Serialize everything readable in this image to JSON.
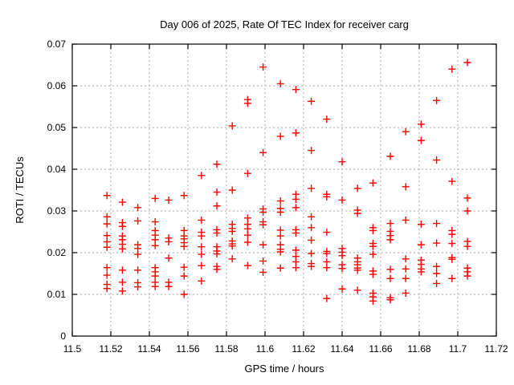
{
  "chart_data": {
    "type": "scatter",
    "title": "Day 006 of 2025, Rate Of TEC Index for receiver carg",
    "xlabel": "GPS time / hours",
    "ylabel": "ROTI / TECUs",
    "xlim": [
      11.5,
      11.72
    ],
    "ylim": [
      0,
      0.07
    ],
    "xticks": [
      {
        "value": 11.5,
        "label": "11.5"
      },
      {
        "value": 11.52,
        "label": "11.52"
      },
      {
        "value": 11.54,
        "label": "11.54"
      },
      {
        "value": 11.56,
        "label": "11.56"
      },
      {
        "value": 11.58,
        "label": "11.58"
      },
      {
        "value": 11.6,
        "label": "11.6"
      },
      {
        "value": 11.62,
        "label": "11.62"
      },
      {
        "value": 11.64,
        "label": "11.64"
      },
      {
        "value": 11.66,
        "label": "11.66"
      },
      {
        "value": 11.68,
        "label": "11.68"
      },
      {
        "value": 11.7,
        "label": "11.7"
      },
      {
        "value": 11.72,
        "label": "11.72"
      }
    ],
    "yticks": [
      {
        "value": 0,
        "label": "0"
      },
      {
        "value": 0.01,
        "label": "0.01"
      },
      {
        "value": 0.02,
        "label": "0.02"
      },
      {
        "value": 0.03,
        "label": "0.03"
      },
      {
        "value": 0.04,
        "label": "0.04"
      },
      {
        "value": 0.05,
        "label": "0.05"
      },
      {
        "value": 0.06,
        "label": "0.06"
      },
      {
        "value": 0.07,
        "label": "0.07"
      }
    ],
    "grid": true,
    "legend_position": "none",
    "marker": {
      "shape": "plus",
      "color": "#ff0000",
      "size": 9
    },
    "series": [
      {
        "name": "ROTI",
        "points": [
          [
            11.518,
            0.0337
          ],
          [
            11.518,
            0.0286
          ],
          [
            11.518,
            0.0269
          ],
          [
            11.518,
            0.0241
          ],
          [
            11.518,
            0.0226
          ],
          [
            11.518,
            0.0213
          ],
          [
            11.518,
            0.0164
          ],
          [
            11.518,
            0.0146
          ],
          [
            11.518,
            0.0124
          ],
          [
            11.518,
            0.0114
          ],
          [
            11.526,
            0.0321
          ],
          [
            11.526,
            0.0272
          ],
          [
            11.526,
            0.0263
          ],
          [
            11.526,
            0.024
          ],
          [
            11.526,
            0.0231
          ],
          [
            11.526,
            0.022
          ],
          [
            11.526,
            0.0209
          ],
          [
            11.526,
            0.0158
          ],
          [
            11.526,
            0.0129
          ],
          [
            11.526,
            0.0108
          ],
          [
            11.534,
            0.0308
          ],
          [
            11.534,
            0.0276
          ],
          [
            11.534,
            0.0219
          ],
          [
            11.534,
            0.021
          ],
          [
            11.534,
            0.0196
          ],
          [
            11.534,
            0.0158
          ],
          [
            11.534,
            0.0128
          ],
          [
            11.534,
            0.0118
          ],
          [
            11.543,
            0.033
          ],
          [
            11.543,
            0.0274
          ],
          [
            11.543,
            0.0253
          ],
          [
            11.543,
            0.0242
          ],
          [
            11.543,
            0.0231
          ],
          [
            11.543,
            0.0217
          ],
          [
            11.543,
            0.0164
          ],
          [
            11.543,
            0.0154
          ],
          [
            11.543,
            0.0144
          ],
          [
            11.543,
            0.0129
          ],
          [
            11.543,
            0.0119
          ],
          [
            11.55,
            0.0326
          ],
          [
            11.55,
            0.0235
          ],
          [
            11.55,
            0.0226
          ],
          [
            11.55,
            0.0187
          ],
          [
            11.55,
            0.0129
          ],
          [
            11.55,
            0.0119
          ],
          [
            11.558,
            0.0337
          ],
          [
            11.558,
            0.0253
          ],
          [
            11.558,
            0.024
          ],
          [
            11.558,
            0.0233
          ],
          [
            11.558,
            0.0224
          ],
          [
            11.558,
            0.0215
          ],
          [
            11.558,
            0.0165
          ],
          [
            11.558,
            0.0144
          ],
          [
            11.558,
            0.01
          ],
          [
            11.567,
            0.0385
          ],
          [
            11.567,
            0.0278
          ],
          [
            11.567,
            0.0249
          ],
          [
            11.567,
            0.024
          ],
          [
            11.567,
            0.0214
          ],
          [
            11.567,
            0.0196
          ],
          [
            11.567,
            0.0169
          ],
          [
            11.567,
            0.0132
          ],
          [
            11.575,
            0.0412
          ],
          [
            11.575,
            0.0345
          ],
          [
            11.575,
            0.0312
          ],
          [
            11.575,
            0.0255
          ],
          [
            11.575,
            0.0247
          ],
          [
            11.575,
            0.0214
          ],
          [
            11.575,
            0.0204
          ],
          [
            11.575,
            0.0197
          ],
          [
            11.575,
            0.0167
          ],
          [
            11.575,
            0.016
          ],
          [
            11.583,
            0.0504
          ],
          [
            11.583,
            0.035
          ],
          [
            11.583,
            0.0268
          ],
          [
            11.583,
            0.0258
          ],
          [
            11.583,
            0.0251
          ],
          [
            11.583,
            0.0228
          ],
          [
            11.583,
            0.0221
          ],
          [
            11.583,
            0.0216
          ],
          [
            11.583,
            0.0185
          ],
          [
            11.591,
            0.0567
          ],
          [
            11.591,
            0.0558
          ],
          [
            11.591,
            0.039
          ],
          [
            11.591,
            0.0283
          ],
          [
            11.591,
            0.0268
          ],
          [
            11.591,
            0.0257
          ],
          [
            11.591,
            0.0242
          ],
          [
            11.591,
            0.0225
          ],
          [
            11.591,
            0.0169
          ],
          [
            11.599,
            0.0645
          ],
          [
            11.599,
            0.044
          ],
          [
            11.599,
            0.0305
          ],
          [
            11.599,
            0.0297
          ],
          [
            11.599,
            0.0274
          ],
          [
            11.599,
            0.0267
          ],
          [
            11.599,
            0.0219
          ],
          [
            11.599,
            0.018
          ],
          [
            11.599,
            0.0153
          ],
          [
            11.608,
            0.0605
          ],
          [
            11.608,
            0.0479
          ],
          [
            11.608,
            0.0324
          ],
          [
            11.608,
            0.0306
          ],
          [
            11.608,
            0.0297
          ],
          [
            11.608,
            0.0254
          ],
          [
            11.608,
            0.024
          ],
          [
            11.608,
            0.0219
          ],
          [
            11.608,
            0.0208
          ],
          [
            11.608,
            0.0202
          ],
          [
            11.608,
            0.0163
          ],
          [
            11.616,
            0.0591
          ],
          [
            11.616,
            0.0487
          ],
          [
            11.616,
            0.034
          ],
          [
            11.616,
            0.0328
          ],
          [
            11.616,
            0.0308
          ],
          [
            11.616,
            0.0255
          ],
          [
            11.616,
            0.0247
          ],
          [
            11.616,
            0.0206
          ],
          [
            11.616,
            0.0191
          ],
          [
            11.616,
            0.0178
          ],
          [
            11.616,
            0.0164
          ],
          [
            11.624,
            0.0563
          ],
          [
            11.624,
            0.0445
          ],
          [
            11.624,
            0.0354
          ],
          [
            11.624,
            0.0286
          ],
          [
            11.624,
            0.026
          ],
          [
            11.624,
            0.023
          ],
          [
            11.624,
            0.0198
          ],
          [
            11.624,
            0.0174
          ],
          [
            11.624,
            0.0167
          ],
          [
            11.632,
            0.052
          ],
          [
            11.632,
            0.034
          ],
          [
            11.632,
            0.0334
          ],
          [
            11.632,
            0.0249
          ],
          [
            11.632,
            0.0203
          ],
          [
            11.632,
            0.0198
          ],
          [
            11.632,
            0.0178
          ],
          [
            11.632,
            0.0164
          ],
          [
            11.632,
            0.009
          ],
          [
            11.64,
            0.0418
          ],
          [
            11.64,
            0.0326
          ],
          [
            11.64,
            0.021
          ],
          [
            11.64,
            0.0201
          ],
          [
            11.64,
            0.0193
          ],
          [
            11.64,
            0.0171
          ],
          [
            11.64,
            0.0162
          ],
          [
            11.64,
            0.0113
          ],
          [
            11.648,
            0.0354
          ],
          [
            11.648,
            0.0302
          ],
          [
            11.648,
            0.0294
          ],
          [
            11.648,
            0.0187
          ],
          [
            11.648,
            0.0178
          ],
          [
            11.648,
            0.0171
          ],
          [
            11.648,
            0.0163
          ],
          [
            11.648,
            0.0158
          ],
          [
            11.648,
            0.011
          ],
          [
            11.656,
            0.0367
          ],
          [
            11.656,
            0.026
          ],
          [
            11.656,
            0.0253
          ],
          [
            11.656,
            0.0222
          ],
          [
            11.656,
            0.0215
          ],
          [
            11.656,
            0.0196
          ],
          [
            11.656,
            0.0156
          ],
          [
            11.656,
            0.0148
          ],
          [
            11.656,
            0.0103
          ],
          [
            11.656,
            0.0094
          ],
          [
            11.656,
            0.0084
          ],
          [
            11.665,
            0.0431
          ],
          [
            11.665,
            0.027
          ],
          [
            11.665,
            0.0251
          ],
          [
            11.665,
            0.0241
          ],
          [
            11.665,
            0.0231
          ],
          [
            11.665,
            0.016
          ],
          [
            11.665,
            0.0138
          ],
          [
            11.665,
            0.0092
          ],
          [
            11.665,
            0.0087
          ],
          [
            11.673,
            0.049
          ],
          [
            11.673,
            0.0358
          ],
          [
            11.673,
            0.0278
          ],
          [
            11.673,
            0.0185
          ],
          [
            11.673,
            0.0161
          ],
          [
            11.673,
            0.0138
          ],
          [
            11.673,
            0.0103
          ],
          [
            11.681,
            0.0508
          ],
          [
            11.681,
            0.0469
          ],
          [
            11.681,
            0.0268
          ],
          [
            11.681,
            0.0219
          ],
          [
            11.681,
            0.0182
          ],
          [
            11.681,
            0.0172
          ],
          [
            11.681,
            0.0161
          ],
          [
            11.681,
            0.0154
          ],
          [
            11.689,
            0.0565
          ],
          [
            11.689,
            0.0422
          ],
          [
            11.689,
            0.027
          ],
          [
            11.689,
            0.0223
          ],
          [
            11.689,
            0.0167
          ],
          [
            11.689,
            0.015
          ],
          [
            11.689,
            0.0126
          ],
          [
            11.697,
            0.064
          ],
          [
            11.697,
            0.0371
          ],
          [
            11.697,
            0.0253
          ],
          [
            11.697,
            0.0244
          ],
          [
            11.697,
            0.0222
          ],
          [
            11.697,
            0.0188
          ],
          [
            11.697,
            0.0184
          ],
          [
            11.697,
            0.0138
          ],
          [
            11.705,
            0.0656
          ],
          [
            11.705,
            0.0331
          ],
          [
            11.705,
            0.03
          ],
          [
            11.705,
            0.0227
          ],
          [
            11.705,
            0.0215
          ],
          [
            11.705,
            0.0163
          ],
          [
            11.705,
            0.0154
          ],
          [
            11.705,
            0.0144
          ]
        ]
      }
    ]
  },
  "colors": {
    "background": "#ffffff",
    "border": "#000000",
    "grid": "#a8a8a8",
    "marker": "#ff0000",
    "text": "#000000"
  }
}
